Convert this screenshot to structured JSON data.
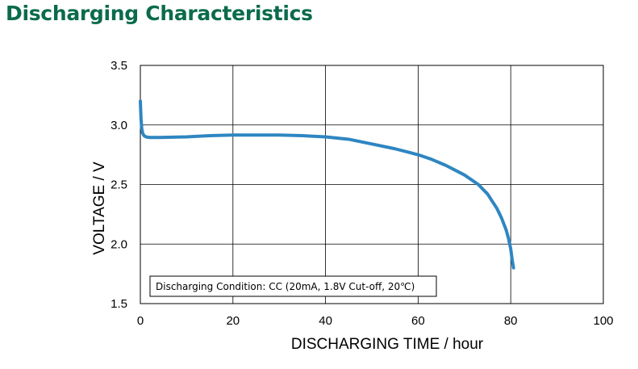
{
  "page": {
    "title": "Discharging Characteristics"
  },
  "chart_data": {
    "type": "line",
    "title": "",
    "xlabel": "DISCHARGING TIME / hour",
    "ylabel": "VOLTAGE / V",
    "xlim": [
      0,
      100
    ],
    "ylim": [
      1.5,
      3.5
    ],
    "x_ticks": [
      "0",
      "20",
      "40",
      "60",
      "80",
      "100"
    ],
    "y_ticks": [
      "1.5",
      "2.0",
      "2.5",
      "3.0",
      "3.5"
    ],
    "grid": true,
    "annotation": "Discharging Condition: CC (20mA, 1.8V Cut-off, 20℃)",
    "series": [
      {
        "color": "#2e86c1",
        "x": [
          0,
          0.15,
          0.3,
          0.5,
          0.8,
          1.2,
          2,
          4,
          10,
          15,
          20,
          25,
          30,
          35,
          40,
          45,
          50,
          55,
          60,
          63,
          66,
          70,
          73,
          75,
          77,
          78,
          79,
          79.5,
          80,
          80.3,
          80.6
        ],
        "y": [
          3.2,
          3.05,
          2.97,
          2.93,
          2.91,
          2.9,
          2.895,
          2.895,
          2.9,
          2.91,
          2.915,
          2.915,
          2.915,
          2.91,
          2.9,
          2.88,
          2.84,
          2.8,
          2.75,
          2.71,
          2.66,
          2.58,
          2.5,
          2.42,
          2.3,
          2.22,
          2.12,
          2.05,
          1.96,
          1.87,
          1.8
        ]
      }
    ]
  }
}
